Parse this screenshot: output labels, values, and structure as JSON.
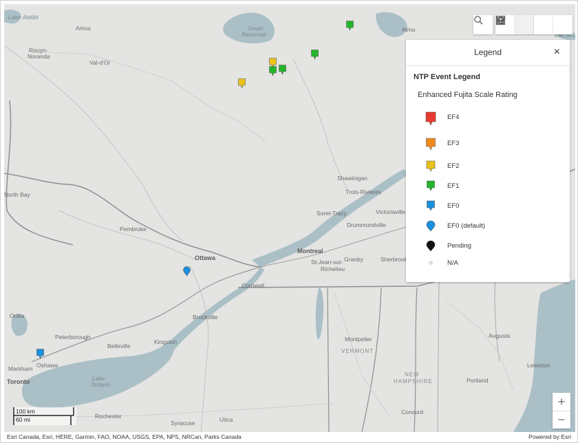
{
  "toolbar": {
    "search_icon": "search-icon",
    "home_icon": "home-icon",
    "legend_icon": "legend-list-icon",
    "layers_icon": "layers-icon",
    "basemap_icon": "basemap-gallery-icon"
  },
  "legend": {
    "title": "Legend",
    "close_label": "×",
    "layer_title": "NTP Event Legend",
    "field_title": "Enhanced Fujita Scale Rating",
    "items": [
      {
        "label": "EF4",
        "color": "#e63a2e",
        "shape": "tall-pin"
      },
      {
        "label": "EF3",
        "color": "#f08a1e",
        "shape": "pin"
      },
      {
        "label": "EF2",
        "color": "#e9c21b",
        "shape": "pin"
      },
      {
        "label": "EF1",
        "color": "#24b52a",
        "shape": "pin"
      },
      {
        "label": "EF0",
        "color": "#1b8fe0",
        "shape": "pin"
      },
      {
        "label": "EF0 (default)",
        "color": "#1b8fe0",
        "shape": "teardrop"
      },
      {
        "label": "Pending",
        "color": "#111111",
        "shape": "teardrop"
      },
      {
        "label": "N/A",
        "color": "#dcdcdc",
        "shape": "dot"
      }
    ]
  },
  "map": {
    "places": [
      {
        "name": "Lake Abitibi",
        "style": "italic"
      },
      {
        "name": "Amos",
        "style": "normal"
      },
      {
        "name": "Rouyn-",
        "style": "normal"
      },
      {
        "name": "Noranda",
        "style": "normal"
      },
      {
        "name": "Val-d'Or",
        "style": "normal"
      },
      {
        "name": "Gouin",
        "style": "italic"
      },
      {
        "name": "Reservoir",
        "style": "italic"
      },
      {
        "name": "Alma",
        "style": "normal"
      },
      {
        "name": "Lac St-Jean",
        "style": "italic"
      },
      {
        "name": "Shawinigan",
        "style": "normal"
      },
      {
        "name": "Trois-Rivieres",
        "style": "normal"
      },
      {
        "name": "Sorel-Tracy",
        "style": "normal"
      },
      {
        "name": "Victoriaville",
        "style": "normal"
      },
      {
        "name": "Drummondville",
        "style": "normal"
      },
      {
        "name": "North Bay",
        "style": "normal"
      },
      {
        "name": "Pembroke",
        "style": "normal"
      },
      {
        "name": "Ottawa",
        "style": "bold"
      },
      {
        "name": "Montreal",
        "style": "bold"
      },
      {
        "name": "St-Jean-sur-",
        "style": "normal"
      },
      {
        "name": "Richelieu",
        "style": "normal"
      },
      {
        "name": "Granby",
        "style": "normal"
      },
      {
        "name": "Sherbrooke",
        "style": "normal"
      },
      {
        "name": "Cornwall",
        "style": "normal"
      },
      {
        "name": "Brockville",
        "style": "normal"
      },
      {
        "name": "Orillia",
        "style": "normal"
      },
      {
        "name": "Peterborough",
        "style": "normal"
      },
      {
        "name": "Belleville",
        "style": "normal"
      },
      {
        "name": "Kingston",
        "style": "normal"
      },
      {
        "name": "Markham",
        "style": "normal"
      },
      {
        "name": "Oshawa",
        "style": "normal"
      },
      {
        "name": "Toronto",
        "style": "bold"
      },
      {
        "name": "Lake",
        "style": "italic"
      },
      {
        "name": "Ontario",
        "style": "italic"
      },
      {
        "name": "Rochester",
        "style": "normal"
      },
      {
        "name": "Syracuse",
        "style": "normal"
      },
      {
        "name": "Utica",
        "style": "normal"
      },
      {
        "name": "Montpelier",
        "style": "normal"
      },
      {
        "name": "VERMONT",
        "style": "state"
      },
      {
        "name": "NEW",
        "style": "state"
      },
      {
        "name": "HAMPSHIRE",
        "style": "state"
      },
      {
        "name": "Concord",
        "style": "normal"
      },
      {
        "name": "Augusta",
        "style": "normal"
      },
      {
        "name": "Portland",
        "style": "normal"
      },
      {
        "name": "Lewiston",
        "style": "normal"
      }
    ],
    "events": [
      {
        "rating": "EF1",
        "color": "#24b52a"
      },
      {
        "rating": "EF1",
        "color": "#24b52a"
      },
      {
        "rating": "EF2",
        "color": "#e9c21b"
      },
      {
        "rating": "EF1",
        "color": "#24b52a"
      },
      {
        "rating": "EF1",
        "color": "#24b52a"
      },
      {
        "rating": "EF2",
        "color": "#e9c21b"
      },
      {
        "rating": "EF0 (default)",
        "color": "#1b8fe0"
      },
      {
        "rating": "EF0",
        "color": "#1b8fe0"
      }
    ]
  },
  "zoom": {
    "in_label": "+",
    "out_label": "−"
  },
  "scalebar": {
    "metric": "100 km",
    "imperial": "60 mi"
  },
  "attribution": {
    "text": "Esri Canada, Esri, HERE, Garmin, FAO, NOAA, USGS, EPA, NPS, NRCan, Parks Canada",
    "powered_by": "Powered by Esri"
  }
}
